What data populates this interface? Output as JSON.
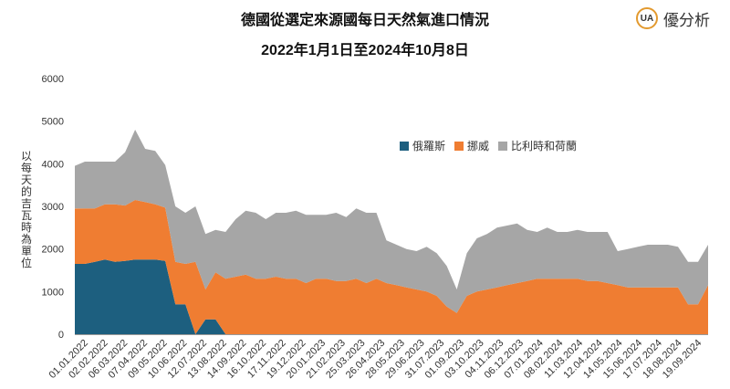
{
  "header": {
    "title": "德國從選定來源國每日天然氣進口情況",
    "subtitle": "2022年1月1日至2024年10月8日",
    "logo_text": "優分析",
    "logo_mark": "UA"
  },
  "colors": {
    "russia": "#1d5f7f",
    "norway": "#ef7d32",
    "benelux": "#a6a6a6",
    "axis": "#999999"
  },
  "chart_data": {
    "type": "area",
    "stacked": true,
    "title": "德國從選定來源國每日天然氣進口情況",
    "subtitle": "2022年1月1日至2024年10月8日",
    "xlabel": "",
    "ylabel": "以每天的吉瓦時為單位",
    "ylim": [
      0,
      6000
    ],
    "yticks": [
      0,
      1000,
      2000,
      3000,
      4000,
      5000,
      6000
    ],
    "grid": false,
    "legend_position": "top-right",
    "xticks": [
      "01.01.2022",
      "02.02.2022",
      "06.03.2022",
      "07.04.2022",
      "09.05.2022",
      "10.06.2022",
      "12.07.2022",
      "13.08.2022",
      "14.09.2022",
      "16.10.2022",
      "17.11.2022",
      "19.12.2022",
      "20.01.2023",
      "21.02.2023",
      "25.03.2023",
      "26.04.2023",
      "28.05.2023",
      "29.06.2023",
      "31.07.2023",
      "01.09.2023",
      "03.10.2023",
      "04.11.2023",
      "06.12.2023",
      "07.01.2024",
      "08.02.2024",
      "11.03.2024",
      "12.04.2024",
      "14.05.2024",
      "15.06.2024",
      "17.07.2024",
      "18.08.2024",
      "19.09.2024"
    ],
    "x": [
      "01.01.2022",
      "15.01.2022",
      "02.02.2022",
      "18.02.2022",
      "06.03.2022",
      "20.03.2022",
      "07.04.2022",
      "22.04.2022",
      "09.05.2022",
      "25.05.2022",
      "10.06.2022",
      "26.06.2022",
      "12.07.2022",
      "26.07.2022",
      "13.08.2022",
      "29.08.2022",
      "14.09.2022",
      "30.09.2022",
      "16.10.2022",
      "02.11.2022",
      "17.11.2022",
      "03.12.2022",
      "19.12.2022",
      "04.01.2023",
      "20.01.2023",
      "05.02.2023",
      "21.02.2023",
      "09.03.2023",
      "25.03.2023",
      "10.04.2023",
      "26.04.2023",
      "12.05.2023",
      "28.05.2023",
      "13.06.2023",
      "29.06.2023",
      "15.07.2023",
      "31.07.2023",
      "16.08.2023",
      "01.09.2023",
      "17.09.2023",
      "03.10.2023",
      "19.10.2023",
      "04.11.2023",
      "20.11.2023",
      "06.12.2023",
      "22.12.2023",
      "07.01.2024",
      "23.01.2024",
      "08.02.2024",
      "24.02.2024",
      "11.03.2024",
      "27.03.2024",
      "12.04.2024",
      "28.04.2024",
      "14.05.2024",
      "30.05.2024",
      "15.06.2024",
      "01.07.2024",
      "17.07.2024",
      "02.08.2024",
      "18.08.2024",
      "03.09.2024",
      "19.09.2024",
      "08.10.2024"
    ],
    "series": [
      {
        "name": "俄羅斯",
        "values": [
          1650,
          1650,
          1700,
          1750,
          1700,
          1720,
          1750,
          1750,
          1750,
          1720,
          700,
          700,
          0,
          350,
          350,
          0,
          0,
          0,
          0,
          0,
          0,
          0,
          0,
          0,
          0,
          0,
          0,
          0,
          0,
          0,
          0,
          0,
          0,
          0,
          0,
          0,
          0,
          0,
          0,
          0,
          0,
          0,
          0,
          0,
          0,
          0,
          0,
          0,
          0,
          0,
          0,
          0,
          0,
          0,
          0,
          0,
          0,
          0,
          0,
          0,
          0,
          0,
          0,
          0
        ]
      },
      {
        "name": "挪威",
        "values": [
          1300,
          1300,
          1250,
          1300,
          1350,
          1300,
          1400,
          1350,
          1300,
          1250,
          1000,
          950,
          1700,
          700,
          1100,
          1300,
          1350,
          1400,
          1300,
          1300,
          1350,
          1300,
          1300,
          1200,
          1300,
          1300,
          1250,
          1250,
          1300,
          1200,
          1300,
          1200,
          1150,
          1100,
          1050,
          1000,
          900,
          650,
          500,
          900,
          1000,
          1050,
          1100,
          1150,
          1200,
          1250,
          1300,
          1300,
          1300,
          1300,
          1300,
          1250,
          1250,
          1200,
          1150,
          1100,
          1100,
          1100,
          1100,
          1100,
          1100,
          700,
          700,
          1150
        ]
      },
      {
        "name": "比利時和荷蘭",
        "values": [
          1000,
          1100,
          1100,
          1000,
          1000,
          1250,
          1650,
          1250,
          1250,
          1000,
          1300,
          1200,
          1300,
          1300,
          1000,
          1100,
          1350,
          1500,
          1550,
          1400,
          1500,
          1550,
          1600,
          1600,
          1500,
          1500,
          1600,
          1500,
          1650,
          1650,
          1550,
          1000,
          950,
          900,
          900,
          1050,
          1000,
          950,
          550,
          1000,
          1250,
          1300,
          1400,
          1400,
          1400,
          1200,
          1100,
          1200,
          1100,
          1100,
          1150,
          1150,
          1150,
          1200,
          800,
          900,
          950,
          1000,
          1000,
          1000,
          950,
          1000,
          1000,
          950
        ]
      }
    ]
  }
}
